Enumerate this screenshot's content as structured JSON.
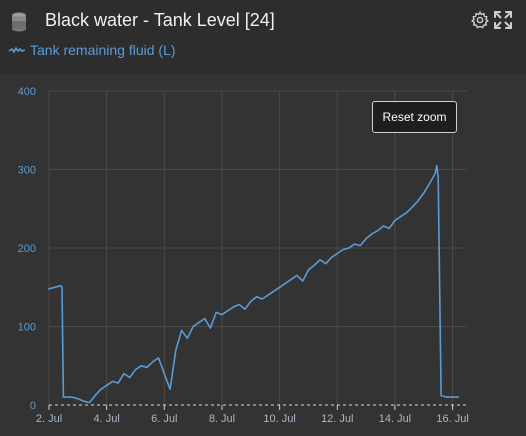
{
  "widget": {
    "title": "Black water - Tank Level [24]",
    "icons": {
      "tank": "tank-icon",
      "settings": "gear-icon",
      "expand": "expand-icon"
    }
  },
  "legend": {
    "label": "Tank remaining fluid (L)"
  },
  "controls": {
    "reset_zoom_label": "Reset zoom"
  },
  "colors": {
    "series": "#5b9bd5",
    "background": "#333333",
    "header": "#2d2d2d",
    "grid": "#4a4a4a",
    "tick_label": "#5b9bd5",
    "x_tick_label": "#a9b8c8"
  },
  "chart_data": {
    "type": "line",
    "x_unit": "day of July",
    "xlim": [
      2,
      16.5
    ],
    "ylim": [
      0,
      400
    ],
    "grid": true,
    "y_ticks": [
      0,
      100,
      200,
      300,
      400
    ],
    "y_tick_labels": [
      "0",
      "100",
      "200",
      "300",
      "400"
    ],
    "x_ticks": [
      2,
      4,
      6,
      8,
      10,
      12,
      14,
      16
    ],
    "x_tick_labels": [
      "2. Jul",
      "4. Jul",
      "6. Jul",
      "8. Jul",
      "10. Jul",
      "12. Jul",
      "14. Jul",
      "16. Jul"
    ],
    "series": [
      {
        "name": "Tank remaining fluid (L)",
        "x": [
          2.0,
          2.2,
          2.4,
          2.45,
          2.5,
          2.8,
          3.0,
          3.2,
          3.4,
          3.6,
          3.8,
          4.0,
          4.2,
          4.4,
          4.6,
          4.8,
          5.0,
          5.2,
          5.4,
          5.6,
          5.8,
          6.0,
          6.2,
          6.4,
          6.6,
          6.8,
          7.0,
          7.2,
          7.4,
          7.6,
          7.8,
          8.0,
          8.2,
          8.4,
          8.6,
          8.8,
          9.0,
          9.2,
          9.4,
          9.6,
          9.8,
          10.0,
          10.2,
          10.4,
          10.6,
          10.8,
          11.0,
          11.2,
          11.4,
          11.6,
          11.8,
          12.0,
          12.2,
          12.4,
          12.6,
          12.8,
          13.0,
          13.2,
          13.4,
          13.6,
          13.8,
          14.0,
          14.2,
          14.4,
          14.6,
          14.8,
          15.0,
          15.2,
          15.4,
          15.45,
          15.5,
          15.6,
          15.8,
          16.0,
          16.2
        ],
        "values": [
          148,
          150,
          152,
          150,
          10,
          10,
          8,
          5,
          3,
          12,
          20,
          25,
          30,
          28,
          40,
          35,
          45,
          50,
          48,
          55,
          60,
          40,
          20,
          70,
          95,
          85,
          100,
          105,
          110,
          98,
          118,
          115,
          120,
          125,
          128,
          122,
          132,
          138,
          135,
          140,
          145,
          150,
          155,
          160,
          165,
          158,
          172,
          178,
          185,
          180,
          188,
          193,
          198,
          200,
          205,
          203,
          212,
          218,
          222,
          228,
          225,
          235,
          240,
          245,
          252,
          260,
          270,
          282,
          295,
          305,
          290,
          12,
          10,
          10,
          10
        ]
      }
    ]
  }
}
